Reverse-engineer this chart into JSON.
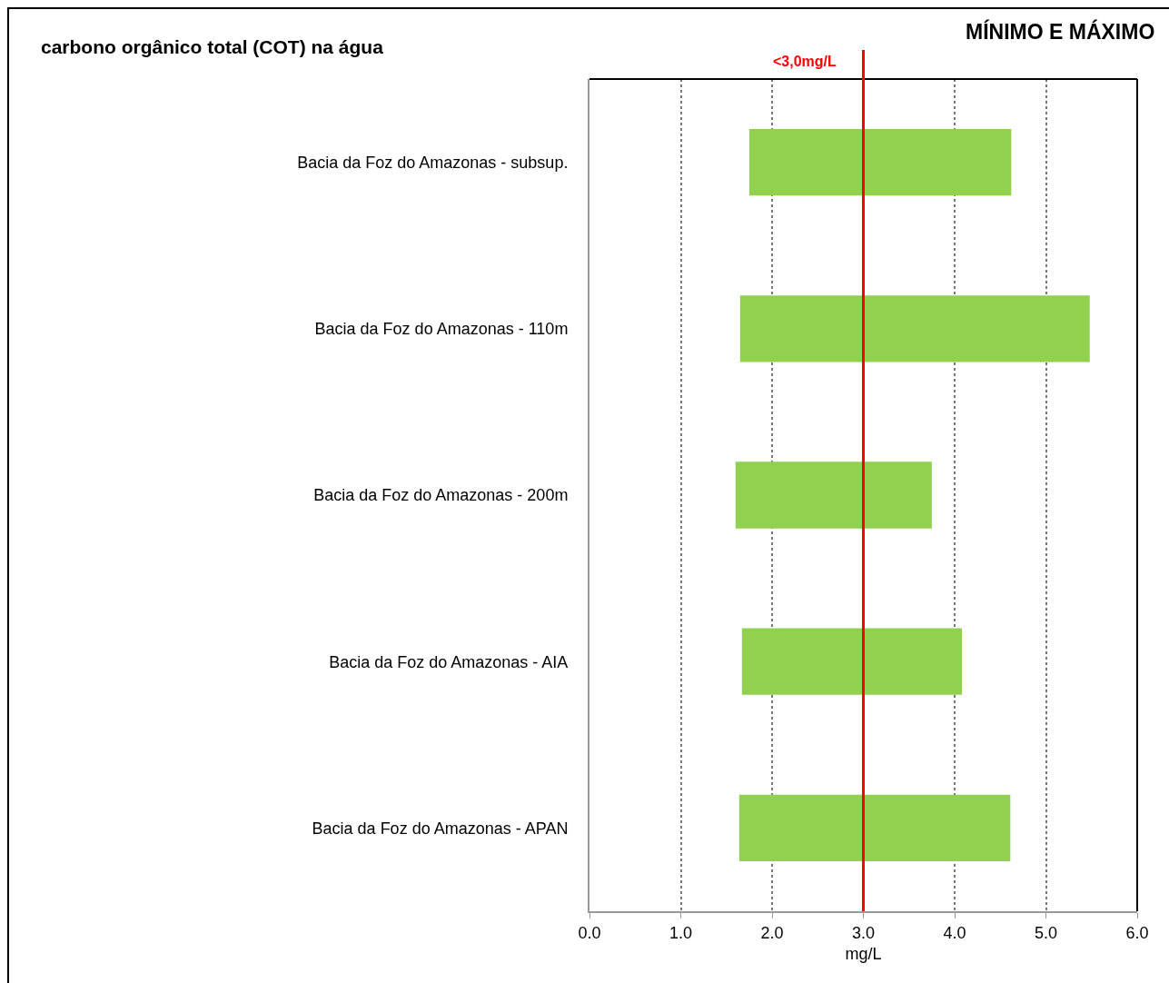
{
  "chart_data": {
    "type": "bar",
    "orientation": "horizontal",
    "title": "carbono orgânico total (COT) na água",
    "xlabel": "mg/L",
    "annotations": [
      "MÍNIMO E MÁXIMO"
    ],
    "categories": [
      "Bacia da Foz do Amazonas - subsup.",
      "Bacia da Foz do Amazonas - 110m",
      "Bacia da Foz do Amazonas - 200m",
      "Bacia da Foz do Amazonas - AIA",
      "Bacia da Foz do Amazonas - APAN"
    ],
    "base": [
      1.75,
      1.65,
      1.6,
      1.67,
      1.64
    ],
    "values": [
      2.87,
      3.83,
      2.15,
      2.41,
      2.97
    ],
    "color": "#92d050",
    "xlim": [
      0,
      6
    ],
    "xticks": [
      {
        "value": 0,
        "label": "0.0"
      },
      {
        "value": 1,
        "label": "1.0"
      },
      {
        "value": 2,
        "label": "2.0"
      },
      {
        "value": 3,
        "label": "3.0"
      },
      {
        "value": 4,
        "label": "4.0"
      },
      {
        "value": 5,
        "label": "5.0"
      },
      {
        "value": 6,
        "label": "6.0"
      }
    ],
    "ref_lines": [
      {
        "axis": "x",
        "value": 3,
        "label": "<3,0mg/L",
        "color": "#ff0000",
        "line_style": "solid"
      }
    ],
    "grid": "x",
    "line_style": "dotted",
    "legend": false
  }
}
